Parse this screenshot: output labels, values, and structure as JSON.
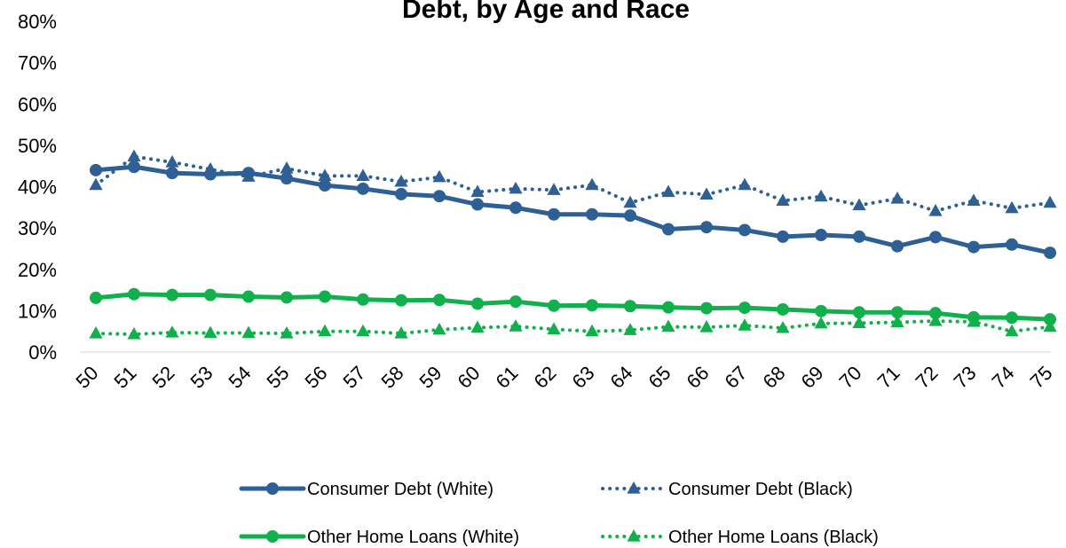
{
  "chart_data": {
    "type": "line",
    "title": "Debt, by Age and Race",
    "xlabel": "",
    "ylabel": "",
    "x": [
      "50",
      "51",
      "52",
      "53",
      "54",
      "55",
      "56",
      "57",
      "58",
      "59",
      "60",
      "61",
      "62",
      "63",
      "64",
      "65",
      "66",
      "67",
      "68",
      "69",
      "70",
      "71",
      "72",
      "73",
      "74",
      "75"
    ],
    "ylim": [
      0,
      80
    ],
    "yticks": [
      "0%",
      "10%",
      "20%",
      "30%",
      "40%",
      "50%",
      "60%",
      "70%",
      "80%"
    ],
    "grid": false,
    "legend_position": "bottom",
    "series": [
      {
        "name": "Consumer Debt (White)",
        "color": "#2e5f95",
        "line_style": "solid",
        "marker": "circle",
        "values": [
          44,
          44.8,
          43.3,
          43,
          43.3,
          42,
          40.3,
          39.5,
          38.2,
          37.7,
          35.7,
          34.9,
          33.3,
          33.3,
          33,
          29.7,
          30.2,
          29.5,
          27.9,
          28.3,
          27.9,
          25.6,
          27.8,
          25.4,
          26,
          24
        ]
      },
      {
        "name": "Consumer Debt (Black)",
        "color": "#2e5f95",
        "line_style": "dotted",
        "marker": "triangle",
        "values": [
          40.4,
          47.3,
          45.9,
          44.2,
          42.4,
          44.4,
          42.6,
          42.6,
          41.2,
          42.3,
          38.7,
          39.5,
          39.2,
          40.4,
          36.1,
          38.7,
          38.1,
          40.4,
          36.6,
          37.6,
          35.5,
          37.1,
          34.1,
          36.6,
          34.8,
          36.1
        ]
      },
      {
        "name": "Other Home Loans (White)",
        "color": "#12b04c",
        "line_style": "solid",
        "marker": "circle",
        "values": [
          13.1,
          14,
          13.8,
          13.8,
          13.4,
          13.2,
          13.4,
          12.7,
          12.5,
          12.6,
          11.7,
          12.2,
          11.2,
          11.3,
          11.1,
          10.8,
          10.6,
          10.7,
          10.3,
          9.9,
          9.6,
          9.6,
          9.4,
          8.4,
          8.3,
          7.9
        ]
      },
      {
        "name": "Other Home Loans (Black)",
        "color": "#12b04c",
        "line_style": "dotted",
        "marker": "triangle",
        "values": [
          4.5,
          4.3,
          4.7,
          4.6,
          4.6,
          4.5,
          5,
          5,
          4.5,
          5.4,
          5.9,
          6.2,
          5.5,
          5,
          5.3,
          6.1,
          6,
          6.4,
          5.8,
          6.9,
          7,
          7.2,
          7.5,
          7.3,
          5,
          6.1
        ]
      }
    ]
  }
}
